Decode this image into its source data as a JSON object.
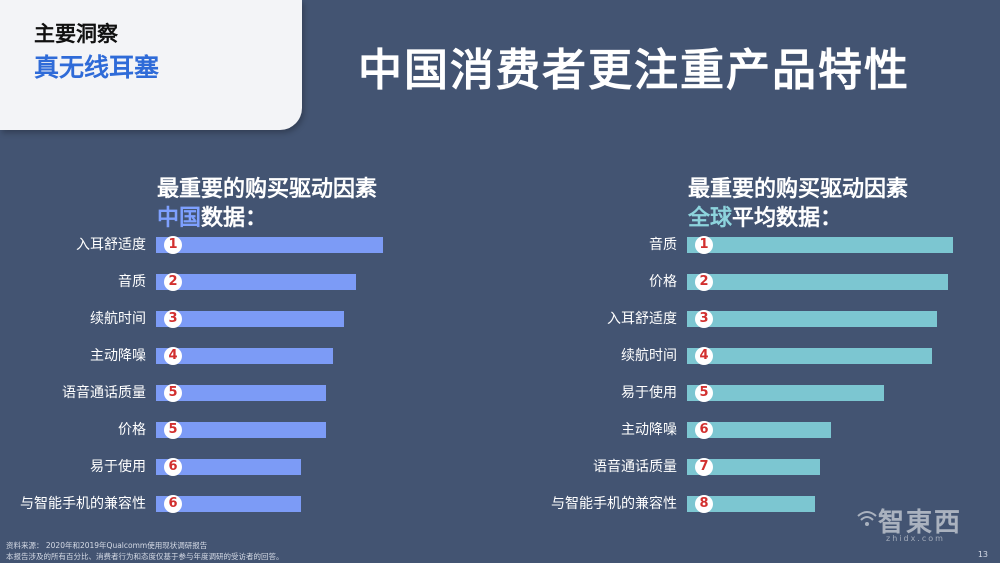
{
  "tag": {
    "line1": "主要洞察",
    "line2": "真无线耳塞"
  },
  "title": "中国消费者更注重产品特性",
  "left": {
    "heading1": "最重要的购买驱动因素",
    "heading2_hl": "中国",
    "heading2_rest": "数据：",
    "items": [
      {
        "label": "入耳舒适度",
        "rank": "1",
        "share": 1.0
      },
      {
        "label": "音质",
        "rank": "2",
        "share": 0.88
      },
      {
        "label": "续航时间",
        "rank": "3",
        "share": 0.83
      },
      {
        "label": "主动降噪",
        "rank": "4",
        "share": 0.78
      },
      {
        "label": "语音通话质量",
        "rank": "5",
        "share": 0.75
      },
      {
        "label": "价格",
        "rank": "5",
        "share": 0.75
      },
      {
        "label": "易于使用",
        "rank": "6",
        "share": 0.64
      },
      {
        "label": "与智能手机的兼容性",
        "rank": "6",
        "share": 0.64
      }
    ]
  },
  "right": {
    "heading1": "最重要的购买驱动因素",
    "heading2_hl": "全球",
    "heading2_rest": "平均数据：",
    "items": [
      {
        "label": "音质",
        "rank": "1",
        "share": 1.0
      },
      {
        "label": "价格",
        "rank": "2",
        "share": 0.98
      },
      {
        "label": "入耳舒适度",
        "rank": "3",
        "share": 0.94
      },
      {
        "label": "续航时间",
        "rank": "4",
        "share": 0.92
      },
      {
        "label": "易于使用",
        "rank": "5",
        "share": 0.74
      },
      {
        "label": "主动降噪",
        "rank": "6",
        "share": 0.54
      },
      {
        "label": "语音通话质量",
        "rank": "7",
        "share": 0.5
      },
      {
        "label": "与智能手机的兼容性",
        "rank": "8",
        "share": 0.48
      }
    ]
  },
  "footnote": {
    "line1": "资料来源： 2020年和2019年Qualcomm使用现状调研报告",
    "line2": "本报告涉及的所有百分比、消费者行为和态度仅基于参与年度调研的受访者的回答。"
  },
  "logo": {
    "text": "智東西",
    "sub": "zhidx.com"
  },
  "page_number": "13",
  "colors": {
    "background": "#435472",
    "china_bar": "#7c9bf6",
    "global_bar": "#7cc6d1",
    "rank_text": "#d2302f"
  }
}
